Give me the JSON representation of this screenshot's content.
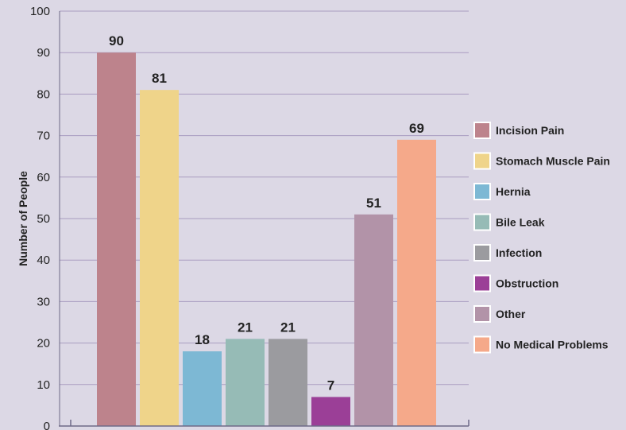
{
  "chart_data": {
    "type": "bar",
    "ylabel": "Number of People",
    "ylim": [
      0,
      100
    ],
    "yticks": [
      0,
      10,
      20,
      30,
      40,
      50,
      60,
      70,
      80,
      90,
      100
    ],
    "grid": true,
    "legend_position": "right",
    "categories": [
      "Incision Pain",
      "Stomach Muscle Pain",
      "Hernia",
      "Bile Leak",
      "Infection",
      "Obstruction",
      "Other",
      "No Medical Problems"
    ],
    "values": [
      90,
      81,
      18,
      21,
      21,
      7,
      51,
      69
    ],
    "colors": [
      "#bd838c",
      "#efd48a",
      "#7db8d4",
      "#96bbb6",
      "#9b9b9f",
      "#9b3f97",
      "#b293a8",
      "#f5a98a"
    ]
  },
  "style": {
    "background": "#dcd8e5",
    "grid_color": "#a99cc0",
    "axis_color": "#6e6a88"
  }
}
